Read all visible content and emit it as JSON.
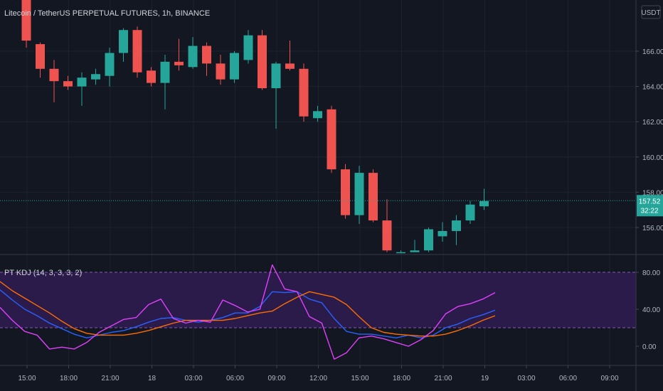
{
  "header": {
    "title": "Litecoin / TetherUS PERPETUAL FUTURES, 1h, BINANCE",
    "currency": "USDT"
  },
  "price": {
    "last": "157.52",
    "countdown": "32:22",
    "last_value": 157.52
  },
  "indicator": {
    "label": "PT KDJ (14, 3, 3, 3, 2)"
  },
  "colors": {
    "background": "#131722",
    "bull": "#26a69a",
    "bear": "#ef5350",
    "k_line": "#2962ff",
    "d_line": "#ff6d00",
    "j_line": "#e040fb",
    "band_fill": "#2a1b4a",
    "grid": "#2a2e39"
  },
  "chart_data": [
    {
      "type": "candlestick",
      "title": "Litecoin / TetherUS PERPETUAL FUTURES, 1h, BINANCE",
      "y_ticks": [
        "166.00",
        "164.00",
        "162.00",
        "160.00",
        "158.00",
        "156.00"
      ],
      "ylim": [
        154.6,
        169.7
      ],
      "x_ticks": [
        "15:00",
        "18:00",
        "21:00",
        "18",
        "03:00",
        "06:00",
        "09:00",
        "12:00",
        "15:00",
        "18:00",
        "21:00",
        "19",
        "03:00",
        "06:00",
        "09:00"
      ],
      "candles": [
        {
          "o": 169.1,
          "h": 169.5,
          "l": 168.9,
          "c": 169.2
        },
        {
          "o": 169.5,
          "h": 169.8,
          "l": 166.2,
          "c": 166.6
        },
        {
          "o": 166.4,
          "h": 166.5,
          "l": 164.5,
          "c": 165.0
        },
        {
          "o": 165.0,
          "h": 165.5,
          "l": 163.1,
          "c": 164.3
        },
        {
          "o": 164.3,
          "h": 164.6,
          "l": 163.8,
          "c": 164.0
        },
        {
          "o": 164.0,
          "h": 164.8,
          "l": 162.9,
          "c": 164.5
        },
        {
          "o": 164.4,
          "h": 165.0,
          "l": 164.1,
          "c": 164.7
        },
        {
          "o": 164.6,
          "h": 166.2,
          "l": 164.0,
          "c": 165.9
        },
        {
          "o": 165.9,
          "h": 167.3,
          "l": 165.4,
          "c": 167.2
        },
        {
          "o": 167.2,
          "h": 167.4,
          "l": 164.5,
          "c": 164.8
        },
        {
          "o": 164.9,
          "h": 165.1,
          "l": 164.0,
          "c": 164.2
        },
        {
          "o": 164.2,
          "h": 165.8,
          "l": 162.7,
          "c": 165.4
        },
        {
          "o": 165.4,
          "h": 166.7,
          "l": 164.9,
          "c": 165.2
        },
        {
          "o": 165.1,
          "h": 166.8,
          "l": 165.0,
          "c": 166.3
        },
        {
          "o": 166.3,
          "h": 166.5,
          "l": 164.6,
          "c": 165.3
        },
        {
          "o": 165.3,
          "h": 165.8,
          "l": 164.1,
          "c": 164.4
        },
        {
          "o": 164.4,
          "h": 166.0,
          "l": 164.2,
          "c": 165.9
        },
        {
          "o": 165.5,
          "h": 167.2,
          "l": 165.3,
          "c": 166.9
        },
        {
          "o": 166.9,
          "h": 167.2,
          "l": 163.8,
          "c": 163.9
        },
        {
          "o": 163.9,
          "h": 165.4,
          "l": 161.6,
          "c": 165.3
        },
        {
          "o": 165.3,
          "h": 166.6,
          "l": 164.9,
          "c": 165.0
        },
        {
          "o": 165.0,
          "h": 165.3,
          "l": 162.0,
          "c": 162.3
        },
        {
          "o": 162.2,
          "h": 162.9,
          "l": 162.0,
          "c": 162.6
        },
        {
          "o": 162.7,
          "h": 162.9,
          "l": 159.1,
          "c": 159.3
        },
        {
          "o": 159.3,
          "h": 159.6,
          "l": 156.5,
          "c": 156.7
        },
        {
          "o": 156.7,
          "h": 159.5,
          "l": 156.2,
          "c": 159.1
        },
        {
          "o": 159.1,
          "h": 159.3,
          "l": 156.3,
          "c": 156.4
        },
        {
          "o": 156.4,
          "h": 157.6,
          "l": 154.6,
          "c": 154.7
        },
        {
          "o": 154.6,
          "h": 154.7,
          "l": 154.6,
          "c": 154.6
        },
        {
          "o": 154.6,
          "h": 155.3,
          "l": 154.6,
          "c": 154.7
        },
        {
          "o": 154.7,
          "h": 156.0,
          "l": 154.6,
          "c": 155.9
        },
        {
          "o": 155.5,
          "h": 156.3,
          "l": 155.2,
          "c": 155.8
        },
        {
          "o": 155.8,
          "h": 156.7,
          "l": 155.0,
          "c": 156.4
        },
        {
          "o": 156.4,
          "h": 157.5,
          "l": 156.2,
          "c": 157.3
        },
        {
          "o": 157.2,
          "h": 158.2,
          "l": 157.0,
          "c": 157.5
        }
      ]
    },
    {
      "type": "line",
      "title": "PT KDJ (14, 3, 3, 3, 2)",
      "y_ticks": [
        "80.00",
        "40.00",
        "0.00"
      ],
      "ylim": [
        -18,
        102
      ],
      "bands": [
        20,
        80
      ],
      "series": [
        {
          "values": [
            61,
            50,
            40,
            33,
            25,
            19,
            13,
            9,
            12,
            15,
            17,
            21,
            26,
            30,
            31,
            28,
            26,
            28,
            31,
            36,
            36,
            43,
            59,
            58,
            59,
            51,
            47,
            30,
            16,
            13,
            13,
            11,
            9,
            12,
            9,
            12,
            20,
            24,
            30,
            34,
            39
          ]
        },
        {
          "values": [
            70,
            60,
            52,
            44,
            36,
            27,
            19,
            14,
            12,
            12,
            12,
            14,
            17,
            21,
            25,
            28,
            28,
            28,
            28,
            30,
            33,
            36,
            38,
            46,
            53,
            59,
            56,
            53,
            45,
            32,
            20,
            15,
            13,
            12,
            11,
            11,
            13,
            17,
            22,
            28,
            33
          ]
        },
        {
          "values": [
            42,
            28,
            16,
            12,
            -3,
            -1,
            -3,
            4,
            15,
            22,
            29,
            31,
            45,
            51,
            30,
            25,
            28,
            26,
            50,
            44,
            37,
            40,
            88,
            62,
            59,
            32,
            25,
            -14,
            -7,
            9,
            11,
            8,
            4,
            0,
            7,
            17,
            35,
            43,
            46,
            51,
            58
          ]
        }
      ]
    }
  ]
}
